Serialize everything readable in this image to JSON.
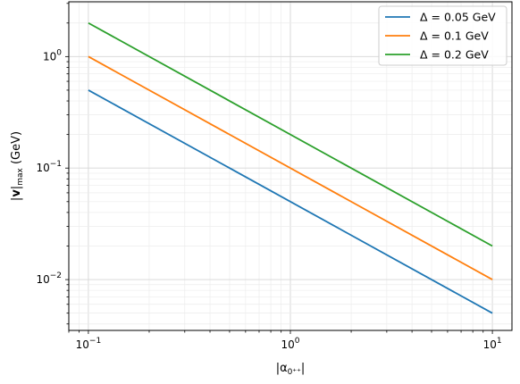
{
  "chart_data": {
    "type": "line",
    "xscale": "log",
    "yscale": "log",
    "xlabel": "|α0⁺⁺|",
    "ylabel": "|v|max (GeV)",
    "xlim": [
      0.08,
      12.5
    ],
    "ylim": [
      0.0035,
      3.1
    ],
    "grid": true,
    "legend_position": "top-right",
    "x": [
      0.1,
      10
    ],
    "series": [
      {
        "name": "Δ = 0.05 GeV",
        "color": "#1f77b4",
        "y": [
          0.5,
          0.005
        ]
      },
      {
        "name": "Δ = 0.1 GeV",
        "color": "#ff7f0e",
        "y": [
          1.0,
          0.01
        ]
      },
      {
        "name": "Δ = 0.2 GeV",
        "color": "#2ca02c",
        "y": [
          2.0,
          0.02
        ]
      }
    ],
    "x_ticks": [
      {
        "value": 0.1,
        "base": "10",
        "exp": "−1"
      },
      {
        "value": 1,
        "base": "10",
        "exp": "0"
      },
      {
        "value": 10,
        "base": "10",
        "exp": "1"
      }
    ],
    "y_ticks": [
      {
        "value": 0.01,
        "base": "10",
        "exp": "−2"
      },
      {
        "value": 0.1,
        "base": "10",
        "exp": "−1"
      },
      {
        "value": 1,
        "base": "10",
        "exp": "0"
      }
    ]
  }
}
